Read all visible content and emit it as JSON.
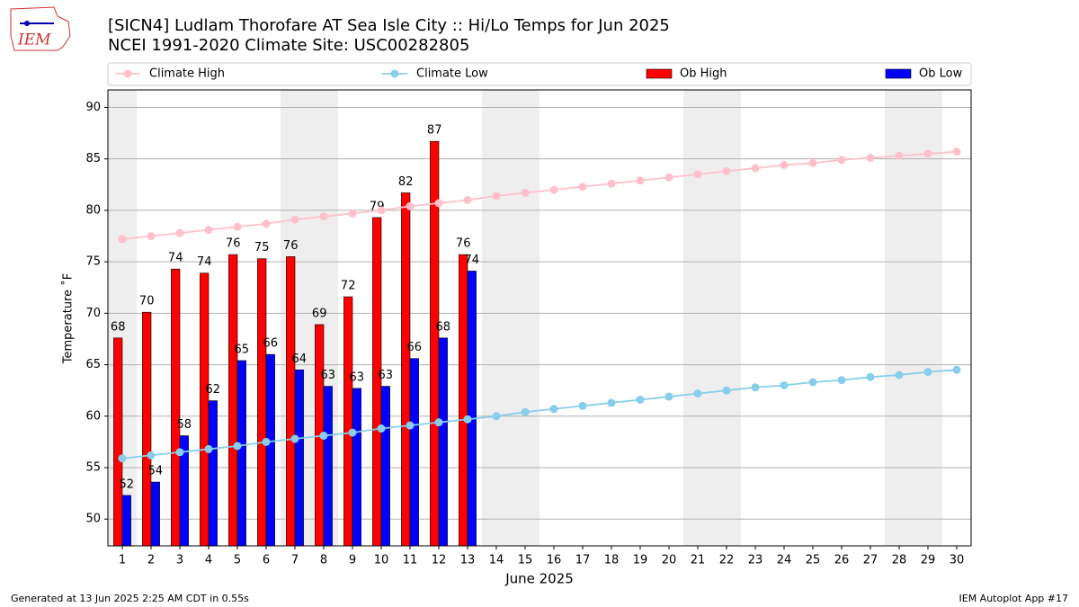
{
  "chart_data": {
    "type": "bar",
    "title": "[SICN4] Ludlam Thorofare  AT Sea Isle City :: Hi/Lo Temps for Jun 2025",
    "subtitle": "NCEI 1991-2020 Climate Site: USC00282805",
    "logo_text": "IEM",
    "x_label": "June 2025",
    "y_label": "Temperature ˚F",
    "footer_left": "Generated at 13 Jun 2025 2:25 AM CDT in 0.55s",
    "footer_right": "IEM Autoplot App #17",
    "categories": [
      "1",
      "2",
      "3",
      "4",
      "5",
      "6",
      "7",
      "8",
      "9",
      "10",
      "11",
      "12",
      "13",
      "14",
      "15",
      "16",
      "17",
      "18",
      "19",
      "20",
      "21",
      "22",
      "23",
      "24",
      "25",
      "26",
      "27",
      "28",
      "29",
      "30"
    ],
    "shaded_categories": [
      "1",
      "7",
      "8",
      "14",
      "15",
      "21",
      "22",
      "28",
      "29"
    ],
    "ylim": [
      47.4,
      91.7
    ],
    "yticks": [
      50,
      55,
      60,
      65,
      70,
      75,
      80,
      85,
      90
    ],
    "grid": true,
    "legend": "top",
    "series": [
      {
        "name": "Climate High",
        "type": "line",
        "color": "#ffc0cb",
        "values": [
          77.2,
          77.5,
          77.8,
          78.1,
          78.4,
          78.7,
          79.1,
          79.4,
          79.7,
          80.0,
          80.4,
          80.7,
          81.0,
          81.4,
          81.7,
          82.0,
          82.3,
          82.6,
          82.9,
          83.2,
          83.5,
          83.8,
          84.1,
          84.4,
          84.6,
          84.9,
          85.1,
          85.3,
          85.5,
          85.7
        ]
      },
      {
        "name": "Climate Low",
        "type": "line",
        "color": "#87ceeb",
        "values": [
          55.9,
          56.2,
          56.5,
          56.8,
          57.1,
          57.5,
          57.8,
          58.1,
          58.4,
          58.8,
          59.1,
          59.4,
          59.7,
          60.0,
          60.4,
          60.7,
          61.0,
          61.3,
          61.6,
          61.9,
          62.2,
          62.5,
          62.8,
          63.0,
          63.3,
          63.5,
          63.8,
          64.0,
          64.3,
          64.5
        ]
      },
      {
        "name": "Ob High",
        "type": "bar",
        "color": "#ff0000",
        "values": [
          67.6,
          70.1,
          74.3,
          73.9,
          75.7,
          75.3,
          75.5,
          68.9,
          71.6,
          79.3,
          81.7,
          86.7,
          75.7,
          null,
          null,
          null,
          null,
          null,
          null,
          null,
          null,
          null,
          null,
          null,
          null,
          null,
          null,
          null,
          null,
          null
        ],
        "value_labels": [
          "68",
          "70",
          "74",
          "74",
          "76",
          "75",
          "76",
          "69",
          "72",
          "79",
          "82",
          "87",
          "76",
          null,
          null,
          null,
          null,
          null,
          null,
          null,
          null,
          null,
          null,
          null,
          null,
          null,
          null,
          null,
          null,
          null
        ]
      },
      {
        "name": "Ob Low",
        "type": "bar",
        "color": "#0000ff",
        "values": [
          52.3,
          53.6,
          58.1,
          61.5,
          65.4,
          66.0,
          64.5,
          62.9,
          62.7,
          62.9,
          65.6,
          67.6,
          74.1,
          null,
          null,
          null,
          null,
          null,
          null,
          null,
          null,
          null,
          null,
          null,
          null,
          null,
          null,
          null,
          null,
          null
        ],
        "value_labels": [
          "52",
          "54",
          "58",
          "62",
          "65",
          "66",
          "64",
          "63",
          "63",
          "63",
          "66",
          "68",
          "74",
          null,
          null,
          null,
          null,
          null,
          null,
          null,
          null,
          null,
          null,
          null,
          null,
          null,
          null,
          null,
          null,
          null
        ]
      }
    ]
  }
}
